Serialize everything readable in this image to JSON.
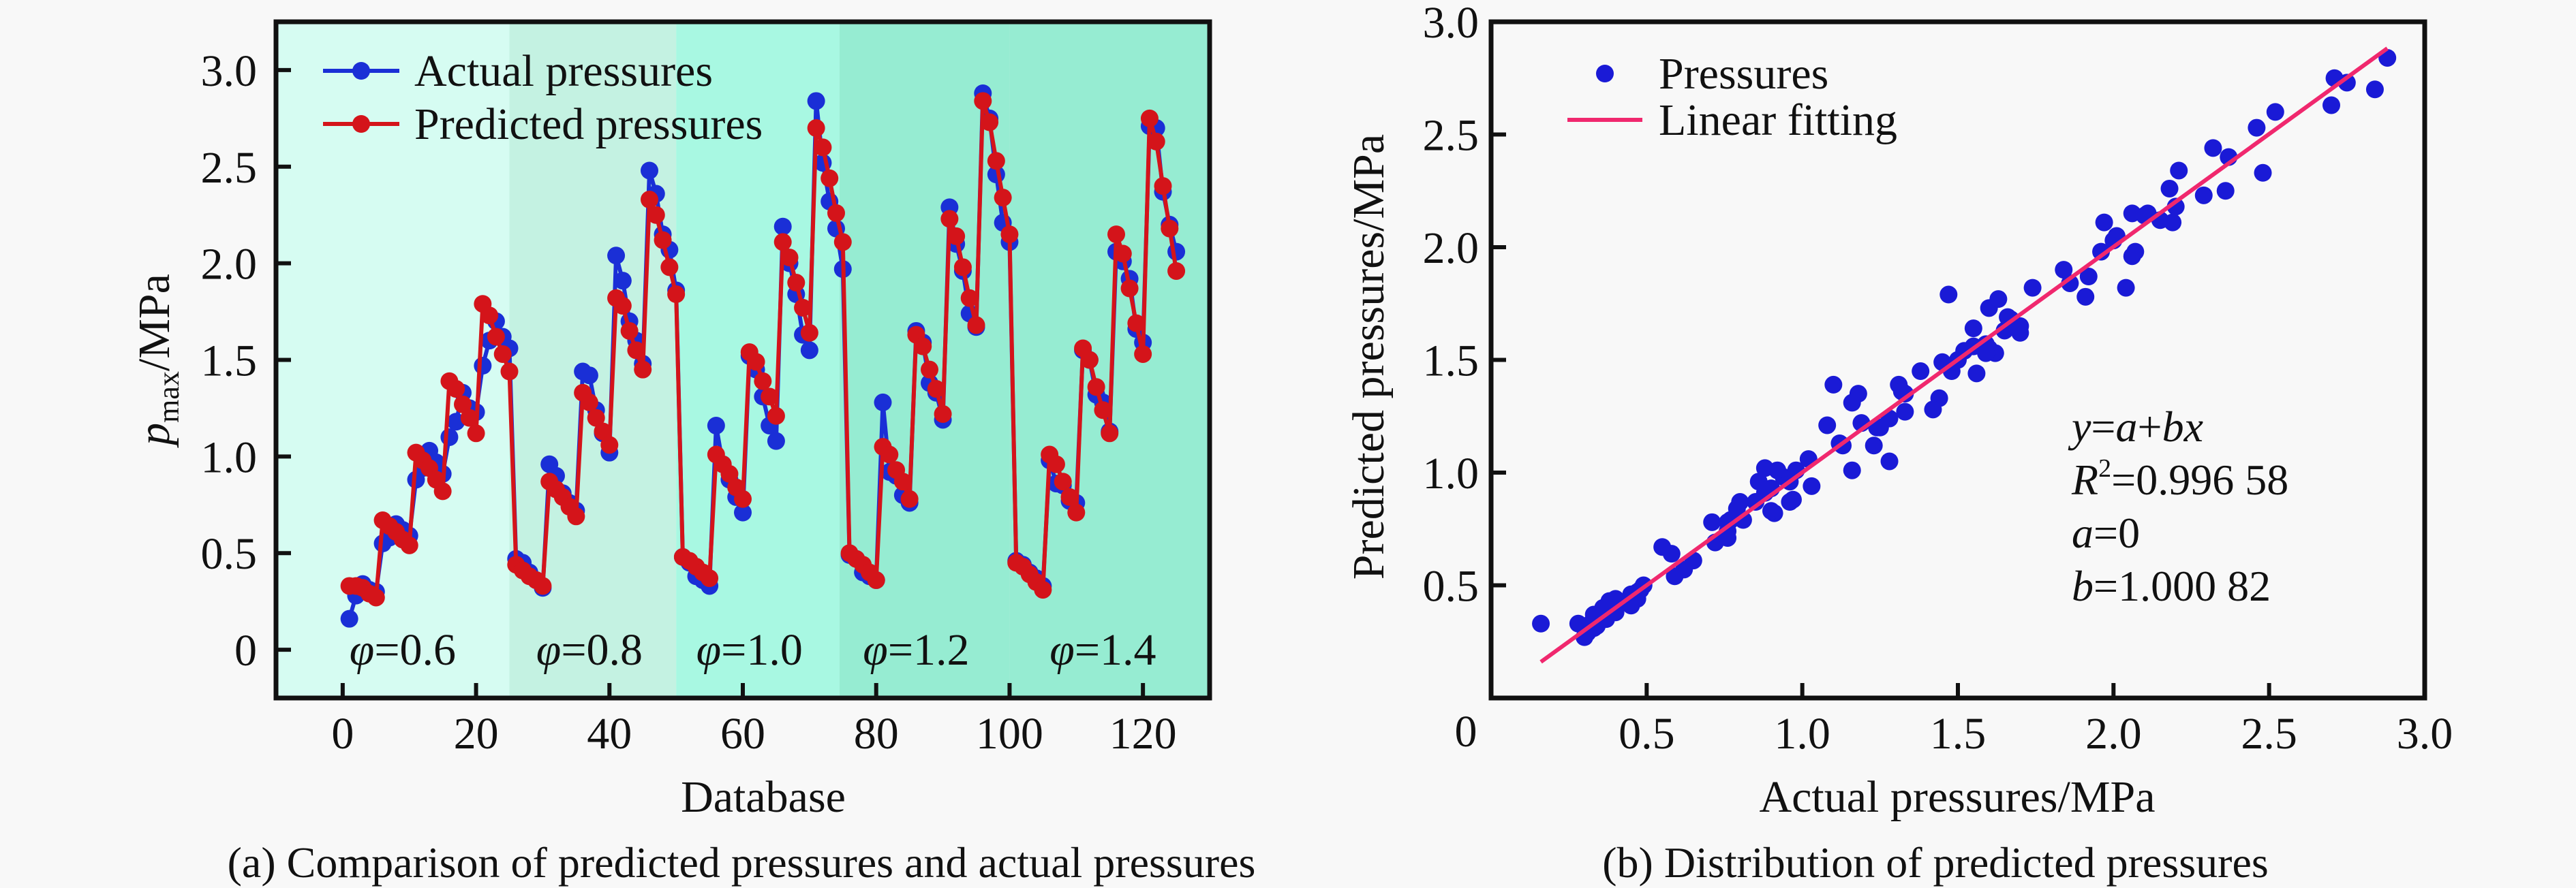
{
  "chart_data": [
    {
      "type": "line",
      "id": "a",
      "title": "",
      "caption": "(a) Comparison of predicted pressures and actual pressures",
      "xlabel": "Database",
      "ylabel_main": "p",
      "ylabel_sub": "max",
      "ylabel_unit": "/MPa",
      "xlim": [
        -10,
        130
      ],
      "ylim": [
        -0.25,
        3.25
      ],
      "xticks": [
        0,
        20,
        40,
        60,
        80,
        100,
        120
      ],
      "xtick_labels": [
        "0",
        "20",
        "40",
        "60",
        "80",
        "100",
        "120"
      ],
      "yticks": [
        0,
        0.5,
        1.0,
        1.5,
        2.0,
        2.5,
        3.0
      ],
      "ytick_labels": [
        "0",
        "0.5",
        "1.0",
        "1.5",
        "2.0",
        "2.5",
        "3.0"
      ],
      "grid": false,
      "legend_position": "top-left",
      "regions": [
        {
          "label_symbol": "φ",
          "label_value": "=0.6",
          "x_range": [
            -10,
            25
          ],
          "color": "#d6fcf2"
        },
        {
          "label_symbol": "φ",
          "label_value": "=0.8",
          "x_range": [
            25,
            50
          ],
          "color": "#c4f2e2"
        },
        {
          "label_symbol": "φ",
          "label_value": "=1.0",
          "x_range": [
            50,
            74.5
          ],
          "color": "#a8f8e2"
        },
        {
          "label_symbol": "φ",
          "label_value": "=1.2",
          "x_range": [
            74.5,
            100
          ],
          "color": "#96ecd2"
        },
        {
          "label_symbol": "φ",
          "label_value": "=1.4",
          "x_range": [
            100,
            130
          ],
          "color": "#96ecd2"
        }
      ],
      "region_label_positions_x": [
        9,
        37,
        61,
        86,
        114
      ],
      "x": [
        1,
        2,
        3,
        4,
        5,
        6,
        7,
        8,
        9,
        10,
        11,
        12,
        13,
        14,
        15,
        16,
        17,
        18,
        19,
        20,
        21,
        22,
        23,
        24,
        25,
        26,
        27,
        28,
        29,
        30,
        31,
        32,
        33,
        34,
        35,
        36,
        37,
        38,
        39,
        40,
        41,
        42,
        43,
        44,
        45,
        46,
        47,
        48,
        49,
        50,
        51,
        52,
        53,
        54,
        55,
        56,
        57,
        58,
        59,
        60,
        61,
        62,
        63,
        64,
        65,
        66,
        67,
        68,
        69,
        70,
        71,
        72,
        73,
        74,
        75,
        76,
        77,
        78,
        79,
        80,
        81,
        82,
        83,
        84,
        85,
        86,
        87,
        88,
        89,
        90,
        91,
        92,
        93,
        94,
        95,
        96,
        97,
        98,
        99,
        100,
        101,
        102,
        103,
        104,
        105,
        106,
        107,
        108,
        109,
        110,
        111,
        112,
        113,
        114,
        115,
        116,
        117,
        118,
        119,
        120,
        121,
        122,
        123,
        124,
        125
      ],
      "series": [
        {
          "name": "Actual pressures",
          "color": "#1a2fd6",
          "values": [
            0.16,
            0.28,
            0.34,
            0.31,
            0.3,
            0.55,
            0.58,
            0.65,
            0.62,
            0.59,
            0.88,
            0.94,
            1.03,
            0.97,
            0.91,
            1.1,
            1.18,
            1.33,
            1.25,
            1.23,
            1.47,
            1.6,
            1.7,
            1.62,
            1.56,
            0.47,
            0.45,
            0.4,
            0.36,
            0.32,
            0.96,
            0.9,
            0.81,
            0.76,
            0.72,
            1.44,
            1.42,
            1.24,
            1.12,
            1.02,
            2.04,
            1.91,
            1.7,
            1.6,
            1.48,
            2.48,
            2.36,
            2.15,
            2.07,
            1.86,
            0.48,
            0.45,
            0.38,
            0.36,
            0.33,
            1.16,
            0.96,
            0.88,
            0.79,
            0.71,
            1.52,
            1.45,
            1.31,
            1.16,
            1.08,
            2.19,
            2.0,
            1.84,
            1.63,
            1.55,
            2.84,
            2.52,
            2.32,
            2.18,
            1.97,
            0.49,
            0.47,
            0.4,
            0.38,
            0.36,
            1.28,
            0.92,
            0.9,
            0.8,
            0.76,
            1.65,
            1.59,
            1.38,
            1.33,
            1.19,
            2.29,
            2.1,
            1.96,
            1.74,
            1.67,
            2.88,
            2.75,
            2.46,
            2.21,
            2.11,
            0.46,
            0.44,
            0.4,
            0.37,
            0.33,
            0.98,
            0.86,
            0.85,
            0.77,
            0.76,
            1.55,
            1.5,
            1.32,
            1.28,
            1.13,
            2.06,
            2.01,
            1.92,
            1.66,
            1.59,
            2.71,
            2.7,
            2.37,
            2.2,
            2.06
          ]
        },
        {
          "name": "Predicted pressures",
          "color": "#d4141a",
          "values": [
            0.33,
            0.33,
            0.32,
            0.29,
            0.27,
            0.67,
            0.64,
            0.61,
            0.57,
            0.54,
            1.02,
            0.98,
            0.94,
            0.88,
            0.82,
            1.39,
            1.35,
            1.27,
            1.2,
            1.12,
            1.79,
            1.73,
            1.62,
            1.53,
            1.44,
            0.44,
            0.41,
            0.38,
            0.36,
            0.33,
            0.87,
            0.83,
            0.79,
            0.74,
            0.69,
            1.33,
            1.28,
            1.2,
            1.13,
            1.06,
            1.82,
            1.78,
            1.65,
            1.55,
            1.45,
            2.33,
            2.25,
            2.12,
            1.98,
            1.84,
            0.48,
            0.46,
            0.43,
            0.4,
            0.37,
            1.01,
            0.96,
            0.91,
            0.84,
            0.78,
            1.54,
            1.49,
            1.39,
            1.31,
            1.21,
            2.11,
            2.03,
            1.9,
            1.77,
            1.64,
            2.7,
            2.6,
            2.44,
            2.26,
            2.11,
            0.5,
            0.47,
            0.44,
            0.4,
            0.36,
            1.05,
            1.01,
            0.93,
            0.87,
            0.78,
            1.63,
            1.57,
            1.45,
            1.35,
            1.22,
            2.23,
            2.14,
            1.98,
            1.82,
            1.68,
            2.84,
            2.73,
            2.53,
            2.34,
            2.15,
            0.45,
            0.43,
            0.39,
            0.35,
            0.31,
            1.01,
            0.96,
            0.87,
            0.79,
            0.71,
            1.56,
            1.5,
            1.36,
            1.24,
            1.12,
            2.15,
            2.05,
            1.87,
            1.69,
            1.53,
            2.75,
            2.63,
            2.4,
            2.18,
            1.96
          ]
        }
      ]
    },
    {
      "type": "scatter",
      "id": "b",
      "title": "",
      "caption": "(b) Distribution of predicted pressures",
      "xlabel": "Actual pressures/MPa",
      "ylabel": "Predicted pressures/MPa",
      "xlim": [
        0,
        3.0
      ],
      "ylim": [
        0,
        3.0
      ],
      "xticks": [
        0.5,
        1.0,
        1.5,
        2.0,
        2.5,
        3.0
      ],
      "xtick_labels": [
        "0.5",
        "1.0",
        "1.5",
        "2.0",
        "2.5",
        "3.0"
      ],
      "yticks": [
        0.5,
        1.0,
        1.5,
        2.0,
        2.5,
        3.0
      ],
      "ytick_labels": [
        "0.5",
        "1.0",
        "1.5",
        "2.0",
        "2.5",
        "3.0"
      ],
      "origin_label": "0",
      "grid": false,
      "legend_position": "top-left",
      "legend": [
        {
          "name": "Pressures",
          "kind": "marker",
          "color": "#1a1ad6"
        },
        {
          "name": "Linear fitting",
          "kind": "line",
          "color": "#f0286e"
        }
      ],
      "points_source": "pairs of chart (a) series: x = Actual pressures, y = Predicted pressures",
      "fit": {
        "a": 0,
        "b": 1.00082,
        "r2": 0.99658,
        "x_range": [
          0.16,
          2.88
        ]
      },
      "annotation": {
        "equation": {
          "lhs": "y",
          "eq1": "=",
          "a": "a",
          "plus": "+",
          "bx": "bx"
        },
        "r2": {
          "symbol": "R",
          "sup": "2",
          "value": "=0.996 58"
        },
        "a": {
          "symbol": "a",
          "value": "=0"
        },
        "b": {
          "symbol": "b",
          "value": "=1.000 82"
        }
      }
    }
  ]
}
